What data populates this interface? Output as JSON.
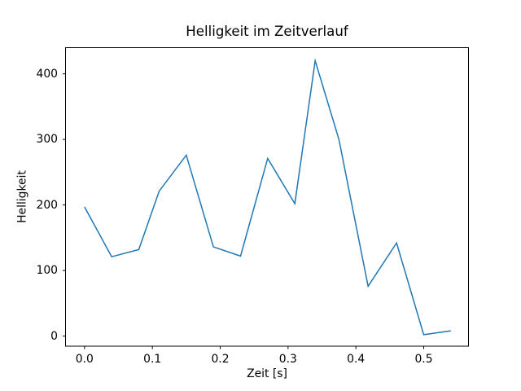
{
  "figure": {
    "background_color": "#ffffff",
    "text_color": "#000000",
    "spine_color": "#000000"
  },
  "chart_data": {
    "type": "line",
    "title": "Helligkeit im Zeitverlauf",
    "xlabel": "Zeit [s]",
    "ylabel": "Helligkeit",
    "x": [
      0.0,
      0.04,
      0.08,
      0.11,
      0.15,
      0.19,
      0.23,
      0.27,
      0.31,
      0.34,
      0.375,
      0.418,
      0.46,
      0.5,
      0.54
    ],
    "y": [
      197,
      121,
      132,
      221,
      276,
      136,
      122,
      271,
      202,
      420,
      300,
      76,
      142,
      2,
      8
    ],
    "series_name": "Helligkeit",
    "line_color": "#1f77b4",
    "line_width": 1.5,
    "xlim": [
      -0.028,
      0.566
    ],
    "ylim": [
      -15.5,
      440
    ],
    "xticks": {
      "values": [
        0.0,
        0.1,
        0.2,
        0.3,
        0.4,
        0.5
      ],
      "labels": [
        "0.0",
        "0.1",
        "0.2",
        "0.3",
        "0.4",
        "0.5"
      ]
    },
    "yticks": {
      "values": [
        0,
        100,
        200,
        300,
        400
      ],
      "labels": [
        "0",
        "100",
        "200",
        "300",
        "400"
      ]
    },
    "grid": false,
    "legend": "none",
    "marker": "none"
  }
}
